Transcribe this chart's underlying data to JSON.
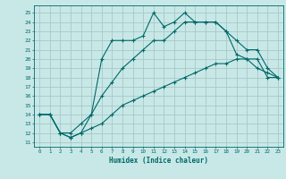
{
  "xlabel": "Humidex (Indice chaleur)",
  "bg_color": "#c8e8e8",
  "grid_color": "#a8c8c8",
  "line_color": "#006868",
  "xlim": [
    -0.5,
    23.5
  ],
  "ylim": [
    10.5,
    25.8
  ],
  "xticks": [
    0,
    1,
    2,
    3,
    4,
    5,
    6,
    7,
    8,
    9,
    10,
    11,
    12,
    13,
    14,
    15,
    16,
    17,
    18,
    19,
    20,
    21,
    22,
    23
  ],
  "yticks": [
    11,
    12,
    13,
    14,
    15,
    16,
    17,
    18,
    19,
    20,
    21,
    22,
    23,
    24,
    25
  ],
  "line1_x": [
    0,
    1,
    2,
    3,
    4,
    5,
    6,
    7,
    8,
    9,
    10,
    11,
    12,
    13,
    14,
    15,
    16,
    17,
    18,
    19,
    20,
    21,
    22,
    23
  ],
  "line1_y": [
    14,
    14,
    12,
    11.5,
    12,
    14,
    20,
    22,
    22,
    22,
    22.5,
    25,
    23.5,
    24,
    25,
    24,
    24,
    24,
    23,
    20.5,
    20,
    19,
    18.5,
    18
  ],
  "line2_x": [
    0,
    1,
    2,
    3,
    4,
    5,
    6,
    7,
    8,
    9,
    10,
    11,
    12,
    13,
    14,
    15,
    16,
    17,
    18,
    19,
    20,
    21,
    22,
    23
  ],
  "line2_y": [
    14,
    14,
    12,
    12,
    13,
    14,
    16,
    17.5,
    19,
    20,
    21,
    22,
    22,
    23,
    24,
    24,
    24,
    24,
    23,
    22,
    21,
    21,
    19,
    18
  ],
  "line3_x": [
    0,
    1,
    2,
    3,
    4,
    5,
    6,
    7,
    8,
    9,
    10,
    11,
    12,
    13,
    14,
    15,
    16,
    17,
    18,
    19,
    20,
    21,
    22,
    23
  ],
  "line3_y": [
    14,
    14,
    12,
    11.5,
    12,
    12.5,
    13,
    14,
    15,
    15.5,
    16,
    16.5,
    17,
    17.5,
    18,
    18.5,
    19,
    19.5,
    19.5,
    20,
    20,
    20,
    18,
    18
  ]
}
